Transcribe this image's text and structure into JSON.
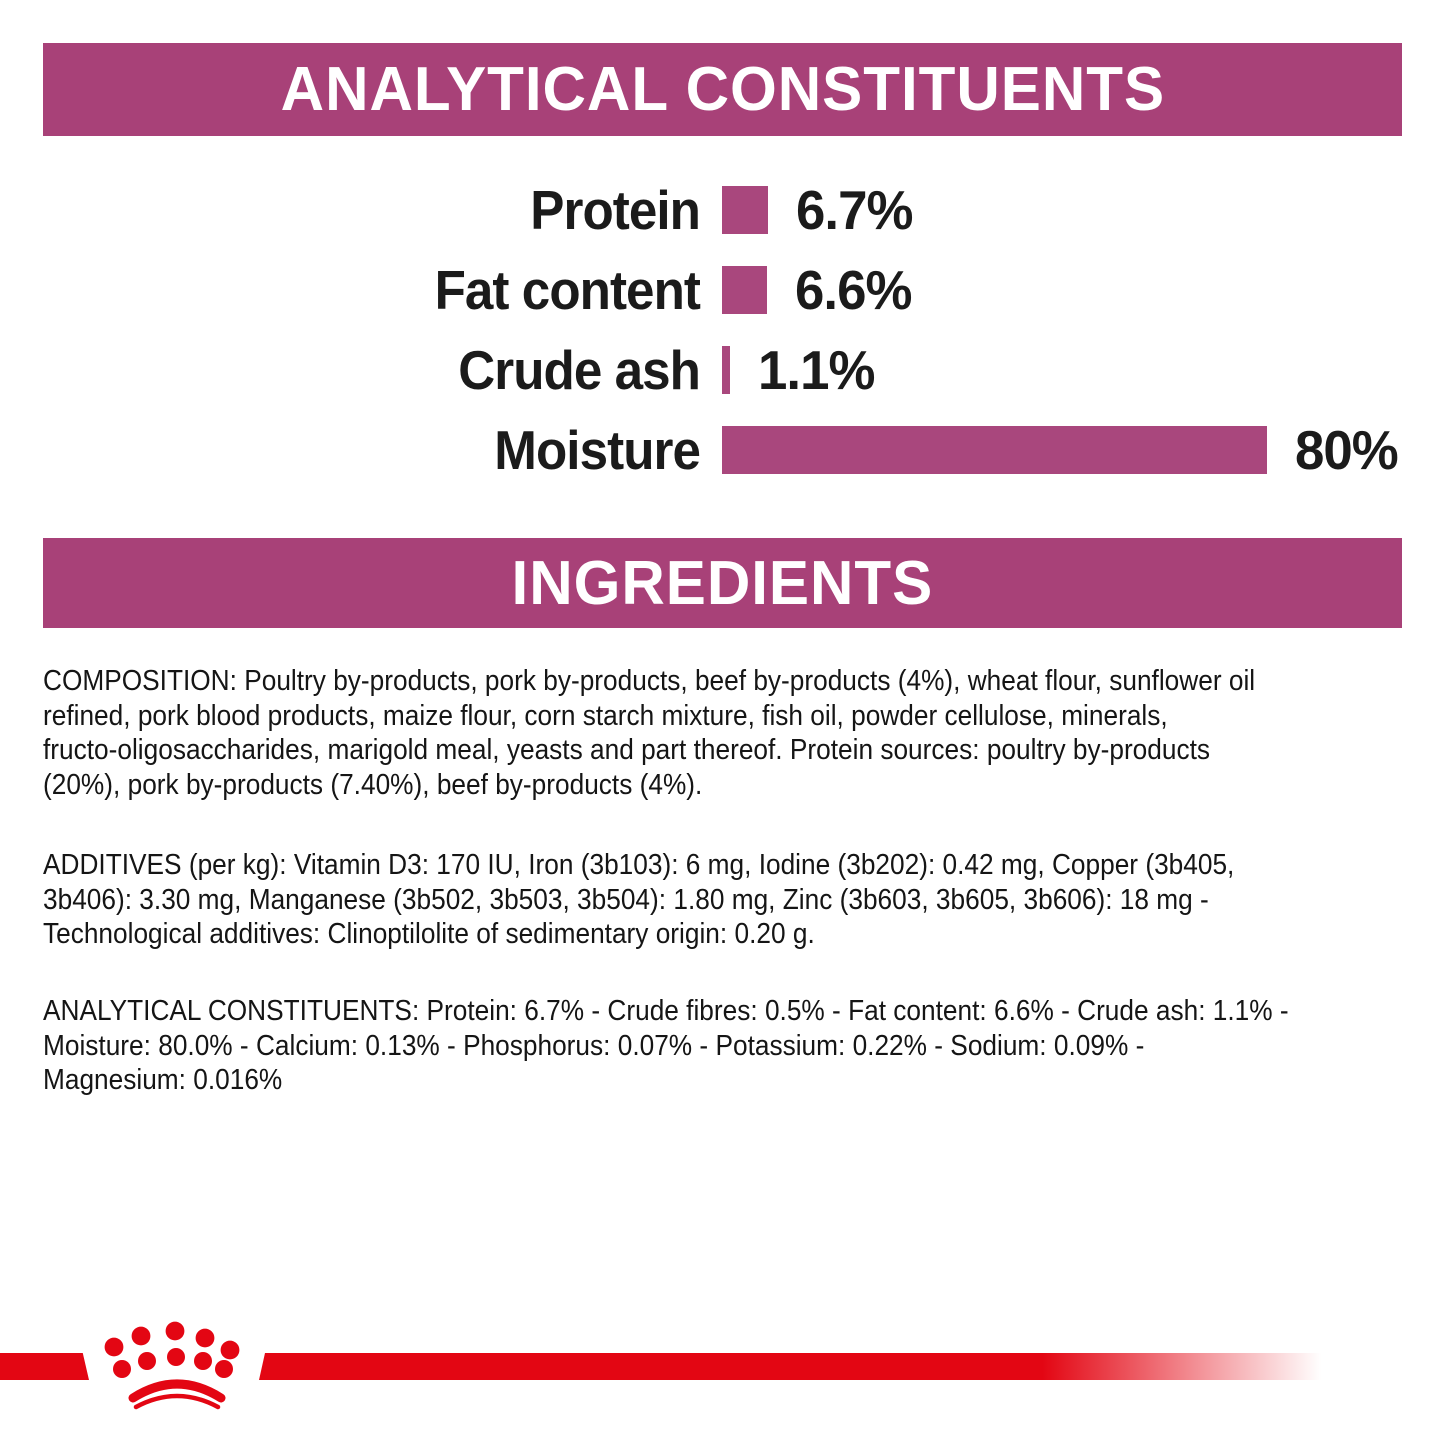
{
  "colors": {
    "accent_purple": "#A84178",
    "bar_purple": "#A9477D",
    "brand_red": "#E30613",
    "text_dark": "#151515"
  },
  "sections": {
    "analytical": {
      "title": "ANALYTICAL CONSTITUENTS"
    },
    "ingredients": {
      "title": "INGREDIENTS"
    }
  },
  "chart_data": {
    "type": "bar",
    "orientation": "horizontal",
    "title": "ANALYTICAL CONSTITUENTS",
    "categories": [
      "Protein",
      "Fat content",
      "Crude ash",
      "Moisture"
    ],
    "values": [
      6.7,
      6.6,
      1.1,
      80
    ],
    "value_labels": [
      "6.7%",
      "6.6%",
      "1.1%",
      "80%"
    ],
    "xlim": [
      0,
      80
    ],
    "grid": false,
    "legend": false,
    "bar_color": "#A9477D",
    "rows": [
      {
        "label": "Protein",
        "value": 6.7,
        "value_label": "6.7%"
      },
      {
        "label": "Fat content",
        "value": 6.6,
        "value_label": "6.6%"
      },
      {
        "label": "Crude ash",
        "value": 1.1,
        "value_label": "1.1%"
      },
      {
        "label": "Moisture",
        "value": 80,
        "value_label": "80%"
      }
    ]
  },
  "paragraphs": {
    "composition": "COMPOSITION: Poultry by-products, pork by-products, beef by-products (4%), wheat flour, sunflower oil\nrefined, pork blood products, maize flour, corn starch mixture, fish oil, powder cellulose, minerals,\nfructo-oligosaccharides, marigold meal, yeasts and part thereof. Protein sources: poultry by-products\n(20%), pork by-products (7.40%), beef by-products (4%).",
    "additives": "ADDITIVES (per kg): Vitamin D3: 170 IU, Iron (3b103): 6 mg, Iodine (3b202): 0.42 mg, Copper (3b405,\n3b406): 3.30 mg, Manganese (3b502, 3b503, 3b504): 1.80 mg, Zinc (3b603, 3b605, 3b606): 18 mg -\nTechnological additives: Clinoptilolite of sedimentary origin: 0.20 g.",
    "analytical_constituents": "ANALYTICAL CONSTITUENTS: Protein: 6.7% - Crude fibres: 0.5% - Fat content: 6.6% - Crude ash: 1.1% -\nMoisture: 80.0% - Calcium: 0.13% - Phosphorus: 0.07% - Potassium: 0.22% - Sodium: 0.09% -\nMagnesium: 0.016%"
  },
  "footer": {
    "logo": "royal-canin-crown"
  }
}
